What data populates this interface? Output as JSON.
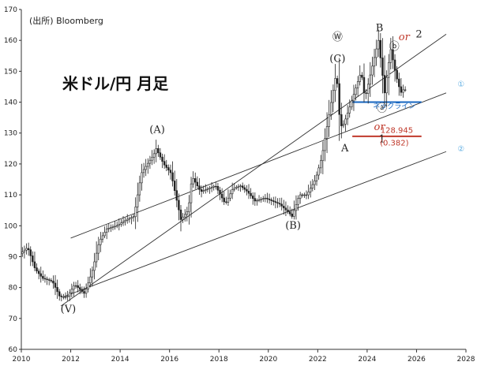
{
  "source_label": "(出所) Bloomberg",
  "chart_title": "米ドル/円 月足",
  "chart_data": {
    "type": "candlestick",
    "title": "米ドル/円 月足",
    "source": "(出所) Bloomberg",
    "xlim": [
      2010,
      2028
    ],
    "ylim": [
      60,
      170
    ],
    "x_ticks": [
      "2010",
      "2012",
      "2014",
      "2016",
      "2018",
      "2020",
      "2022",
      "2024",
      "2026",
      "2028"
    ],
    "y_ticks": [
      "60",
      "70",
      "80",
      "90",
      "100",
      "110",
      "120",
      "130",
      "140",
      "150",
      "160",
      "170"
    ],
    "grid": false,
    "anchors": [
      [
        2010.0,
        91
      ],
      [
        2010.3,
        93
      ],
      [
        2010.6,
        86
      ],
      [
        2010.9,
        83
      ],
      [
        2011.3,
        82
      ],
      [
        2011.6,
        77
      ],
      [
        2011.9,
        77
      ],
      [
        2012.2,
        81
      ],
      [
        2012.6,
        78
      ],
      [
        2012.9,
        85
      ],
      [
        2013.2,
        95
      ],
      [
        2013.5,
        99
      ],
      [
        2013.9,
        100
      ],
      [
        2014.3,
        102
      ],
      [
        2014.6,
        103
      ],
      [
        2014.9,
        117
      ],
      [
        2015.4,
        123
      ],
      [
        2015.5,
        125
      ],
      [
        2015.8,
        120
      ],
      [
        2016.1,
        117
      ],
      [
        2016.5,
        102
      ],
      [
        2016.8,
        105
      ],
      [
        2016.95,
        116
      ],
      [
        2017.3,
        111
      ],
      [
        2017.6,
        112
      ],
      [
        2017.9,
        113
      ],
      [
        2018.3,
        107
      ],
      [
        2018.6,
        112
      ],
      [
        2018.9,
        113
      ],
      [
        2019.2,
        111
      ],
      [
        2019.5,
        108
      ],
      [
        2019.9,
        109
      ],
      [
        2020.2,
        108
      ],
      [
        2020.5,
        107
      ],
      [
        2020.9,
        104
      ],
      [
        2021.0,
        103
      ],
      [
        2021.3,
        110
      ],
      [
        2021.6,
        110
      ],
      [
        2021.95,
        115
      ],
      [
        2022.2,
        122
      ],
      [
        2022.5,
        136
      ],
      [
        2022.8,
        150
      ],
      [
        2022.95,
        132
      ],
      [
        2023.1,
        133
      ],
      [
        2023.4,
        140
      ],
      [
        2023.8,
        150
      ],
      [
        2023.95,
        141
      ],
      [
        2024.2,
        150
      ],
      [
        2024.5,
        160
      ],
      [
        2024.75,
        143
      ],
      [
        2024.9,
        152
      ],
      [
        2025.0,
        157
      ],
      [
        2025.2,
        149
      ],
      [
        2025.4,
        143
      ],
      [
        2025.5,
        144
      ]
    ],
    "channel_lines": [
      {
        "from": [
          2011.6,
          74
        ],
        "to": [
          2027.2,
          162
        ]
      },
      {
        "from": [
          2012.0,
          96
        ],
        "to": [
          2027.2,
          143
        ]
      },
      {
        "from": [
          2011.7,
          77
        ],
        "to": [
          2027.2,
          124
        ]
      }
    ],
    "horizontal_lines": [
      {
        "name": "neckline",
        "label": "ネックライン",
        "y": 140,
        "x_range": [
          2023.4,
          2026.2
        ],
        "color": "#1565c0"
      },
      {
        "name": "fib-level",
        "label": "128.945",
        "y": 128.945,
        "x_range": [
          2023.4,
          2026.2
        ],
        "color": "#c0392b"
      }
    ],
    "annotations": [
      {
        "text": "(V)",
        "x": 2011.9,
        "y": 72,
        "style": "wave"
      },
      {
        "text": "(A)",
        "x": 2015.5,
        "y": 130,
        "style": "wave"
      },
      {
        "text": "(B)",
        "x": 2021.0,
        "y": 99,
        "style": "wave"
      },
      {
        "text": "(C)",
        "x": 2022.8,
        "y": 153,
        "style": "wave"
      },
      {
        "text": "Ⓦ",
        "x": 2022.8,
        "y": 160,
        "style": "wave"
      },
      {
        "text": "A",
        "x": 2023.1,
        "y": 124,
        "style": "wave"
      },
      {
        "text": "B",
        "x": 2024.5,
        "y": 163,
        "style": "wave"
      },
      {
        "text": "ⓐ",
        "x": 2024.6,
        "y": 137,
        "style": "wave"
      },
      {
        "text": "ⓑ",
        "x": 2025.1,
        "y": 157,
        "style": "wave"
      },
      {
        "text": "or",
        "x": 2025.5,
        "y": 160,
        "style": "or"
      },
      {
        "text": "2",
        "x": 2026.1,
        "y": 161,
        "style": "wave"
      },
      {
        "text": "or",
        "x": 2024.5,
        "y": 131,
        "style": "or"
      },
      {
        "text": "1",
        "x": 2024.6,
        "y": 127,
        "style": "wave"
      },
      {
        "text": "(0.382)",
        "x": 2025.1,
        "y": 126,
        "style": "num"
      },
      {
        "text": "128.945",
        "x": 2025.2,
        "y": 130,
        "style": "num"
      },
      {
        "text": "ネックライン",
        "x": 2025.1,
        "y": 138,
        "style": "neck"
      },
      {
        "text": "①",
        "x": 2027.8,
        "y": 145,
        "style": "blue"
      },
      {
        "text": "②",
        "x": 2027.8,
        "y": 124,
        "style": "blue"
      }
    ]
  }
}
